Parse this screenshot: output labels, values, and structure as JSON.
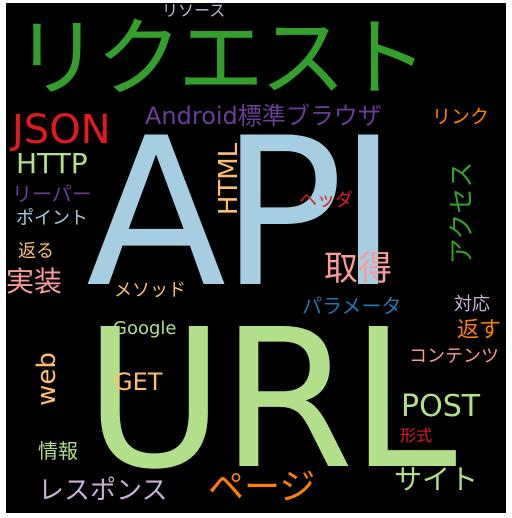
{
  "background": "#000000",
  "words": [
    {
      "id": "api",
      "text": "API",
      "color": "#a6cee3",
      "orientation": "horizontal"
    },
    {
      "id": "url",
      "text": "URL",
      "color": "#b2df8a",
      "orientation": "horizontal"
    },
    {
      "id": "request",
      "text": "リクエスト",
      "color": "#33a02c",
      "orientation": "horizontal"
    },
    {
      "id": "json",
      "text": "JSON",
      "color": "#e31a1c",
      "orientation": "horizontal"
    },
    {
      "id": "android",
      "text": "Android標準ブラウザ",
      "color": "#6a3d9a",
      "orientation": "horizontal"
    },
    {
      "id": "link",
      "text": "リンク",
      "color": "#ff7f00",
      "orientation": "horizontal"
    },
    {
      "id": "resource",
      "text": "リソース",
      "color": "#cab2d6",
      "orientation": "horizontal"
    },
    {
      "id": "http",
      "text": "HTTP",
      "color": "#b2df8a",
      "orientation": "horizontal"
    },
    {
      "id": "html",
      "text": "HTML",
      "color": "#fdbf6f",
      "orientation": "vertical"
    },
    {
      "id": "access",
      "text": "アクセス",
      "color": "#33a02c",
      "orientation": "vertical"
    },
    {
      "id": "reaper",
      "text": "リーパー",
      "color": "#6a3d9a",
      "orientation": "horizontal"
    },
    {
      "id": "point",
      "text": "ポイント",
      "color": "#a6cee3",
      "orientation": "horizontal"
    },
    {
      "id": "header",
      "text": "ヘッダ",
      "color": "#e31a1c",
      "orientation": "horizontal"
    },
    {
      "id": "return1",
      "text": "返る",
      "color": "#fdbf6f",
      "orientation": "horizontal"
    },
    {
      "id": "implement",
      "text": "実装",
      "color": "#fb9a99",
      "orientation": "horizontal"
    },
    {
      "id": "get",
      "text": "取得",
      "color": "#fb9a99",
      "orientation": "horizontal"
    },
    {
      "id": "method",
      "text": "メソッド",
      "color": "#fdbf6f",
      "orientation": "horizontal"
    },
    {
      "id": "parameter",
      "text": "パラメータ",
      "color": "#1f78b4",
      "orientation": "horizontal"
    },
    {
      "id": "support",
      "text": "対応",
      "color": "#cab2d6",
      "orientation": "horizontal"
    },
    {
      "id": "google",
      "text": "Google",
      "color": "#b2df8a",
      "orientation": "horizontal"
    },
    {
      "id": "return2",
      "text": "返す",
      "color": "#ff7f00",
      "orientation": "horizontal"
    },
    {
      "id": "content",
      "text": "コンテンツ",
      "color": "#fb9a99",
      "orientation": "horizontal"
    },
    {
      "id": "web",
      "text": "web",
      "color": "#fdbf6f",
      "orientation": "vertical"
    },
    {
      "id": "getword",
      "text": "GET",
      "color": "#fdbf6f",
      "orientation": "horizontal"
    },
    {
      "id": "post",
      "text": "POST",
      "color": "#b2df8a",
      "orientation": "horizontal"
    },
    {
      "id": "format",
      "text": "形式",
      "color": "#e31a1c",
      "orientation": "horizontal"
    },
    {
      "id": "info",
      "text": "情報",
      "color": "#b2df8a",
      "orientation": "horizontal"
    },
    {
      "id": "response",
      "text": "レスポンス",
      "color": "#cab2d6",
      "orientation": "horizontal"
    },
    {
      "id": "page",
      "text": "ページ",
      "color": "#ff7f00",
      "orientation": "horizontal"
    },
    {
      "id": "site",
      "text": "サイト",
      "color": "#b2df8a",
      "orientation": "horizontal"
    }
  ]
}
